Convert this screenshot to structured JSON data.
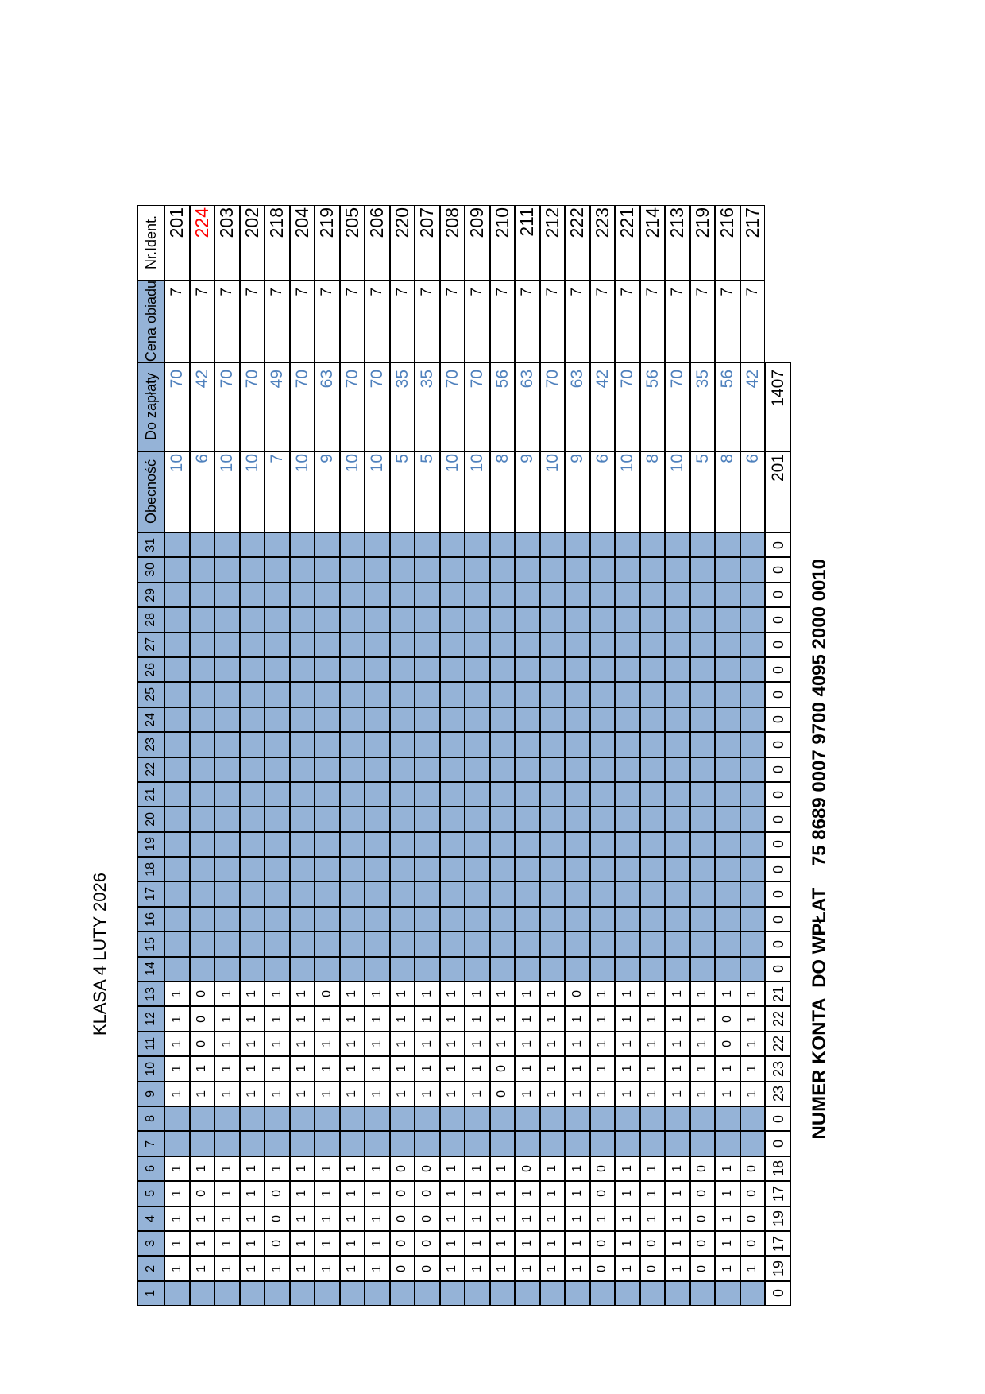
{
  "page": {
    "title_vertical": "KLASA 4 LUTY 2026",
    "account_line": "NUMER KONTA  DO WPŁAT    75 8689 0007 9700 4095 2000 0010"
  },
  "colors": {
    "fill_blue": "#95b3d7",
    "text_blue": "#4f81bd",
    "alert_red": "#ff0000"
  },
  "table": {
    "headers": {
      "id": "Nr.Ident.",
      "price": "Cena obiadu",
      "due": "Do zapłaty",
      "attendance": "Obecność"
    },
    "students": [
      {
        "id": "201",
        "id_color": "black",
        "price": "7",
        "due": "70",
        "attendance": "10"
      },
      {
        "id": "224",
        "id_color": "red",
        "price": "7",
        "due": "42",
        "attendance": "6"
      },
      {
        "id": "203",
        "id_color": "black",
        "price": "7",
        "due": "70",
        "attendance": "10"
      },
      {
        "id": "202",
        "id_color": "black",
        "price": "7",
        "due": "70",
        "attendance": "10"
      },
      {
        "id": "218",
        "id_color": "black",
        "price": "7",
        "due": "49",
        "attendance": "7"
      },
      {
        "id": "204",
        "id_color": "black",
        "price": "7",
        "due": "70",
        "attendance": "10"
      },
      {
        "id": "219",
        "id_color": "black",
        "price": "7",
        "due": "63",
        "attendance": "9"
      },
      {
        "id": "205",
        "id_color": "black",
        "price": "7",
        "due": "70",
        "attendance": "10"
      },
      {
        "id": "206",
        "id_color": "black",
        "price": "7",
        "due": "70",
        "attendance": "10"
      },
      {
        "id": "220",
        "id_color": "black",
        "price": "7",
        "due": "35",
        "attendance": "5"
      },
      {
        "id": "207",
        "id_color": "black",
        "price": "7",
        "due": "35",
        "attendance": "5"
      },
      {
        "id": "208",
        "id_color": "black",
        "price": "7",
        "due": "70",
        "attendance": "10"
      },
      {
        "id": "209",
        "id_color": "black",
        "price": "7",
        "due": "70",
        "attendance": "10"
      },
      {
        "id": "210",
        "id_color": "black",
        "price": "7",
        "due": "56",
        "attendance": "8"
      },
      {
        "id": "211",
        "id_color": "black",
        "price": "7",
        "due": "63",
        "attendance": "9"
      },
      {
        "id": "212",
        "id_color": "black",
        "price": "7",
        "due": "70",
        "attendance": "10"
      },
      {
        "id": "222",
        "id_color": "black",
        "price": "7",
        "due": "63",
        "attendance": "9"
      },
      {
        "id": "223",
        "id_color": "black",
        "price": "7",
        "due": "42",
        "attendance": "6"
      },
      {
        "id": "221",
        "id_color": "black",
        "price": "7",
        "due": "70",
        "attendance": "10"
      },
      {
        "id": "214",
        "id_color": "black",
        "price": "7",
        "due": "56",
        "attendance": "8"
      },
      {
        "id": "213",
        "id_color": "black",
        "price": "7",
        "due": "70",
        "attendance": "10"
      },
      {
        "id": "219",
        "id_color": "black",
        "price": "7",
        "due": "35",
        "attendance": "5"
      },
      {
        "id": "216",
        "id_color": "black",
        "price": "7",
        "due": "56",
        "attendance": "8"
      },
      {
        "id": "217",
        "id_color": "black",
        "price": "7",
        "due": "42",
        "attendance": "6"
      }
    ],
    "totals": {
      "due": "1407",
      "attendance": "201"
    },
    "days": [
      {
        "day": "31",
        "school": false,
        "total": "0",
        "marks": null
      },
      {
        "day": "30",
        "school": false,
        "total": "0",
        "marks": null
      },
      {
        "day": "29",
        "school": false,
        "total": "0",
        "marks": null
      },
      {
        "day": "28",
        "school": false,
        "total": "0",
        "marks": null
      },
      {
        "day": "27",
        "school": false,
        "total": "0",
        "marks": null
      },
      {
        "day": "26",
        "school": false,
        "total": "0",
        "marks": null
      },
      {
        "day": "25",
        "school": false,
        "total": "0",
        "marks": null
      },
      {
        "day": "24",
        "school": false,
        "total": "0",
        "marks": null
      },
      {
        "day": "23",
        "school": false,
        "total": "0",
        "marks": null
      },
      {
        "day": "22",
        "school": false,
        "total": "0",
        "marks": null
      },
      {
        "day": "21",
        "school": false,
        "total": "0",
        "marks": null
      },
      {
        "day": "20",
        "school": false,
        "total": "0",
        "marks": null
      },
      {
        "day": "19",
        "school": false,
        "total": "0",
        "marks": null
      },
      {
        "day": "18",
        "school": false,
        "total": "0",
        "marks": null
      },
      {
        "day": "17",
        "school": false,
        "total": "0",
        "marks": null
      },
      {
        "day": "16",
        "school": false,
        "total": "0",
        "marks": null
      },
      {
        "day": "15",
        "school": false,
        "total": "0",
        "marks": null
      },
      {
        "day": "14",
        "school": false,
        "total": "0",
        "marks": null
      },
      {
        "day": "13",
        "school": true,
        "total": "21",
        "marks": [
          1,
          0,
          1,
          1,
          1,
          1,
          0,
          1,
          1,
          1,
          1,
          1,
          1,
          1,
          1,
          1,
          0,
          1,
          1,
          1,
          1,
          1,
          1,
          1
        ]
      },
      {
        "day": "12",
        "school": true,
        "total": "22",
        "marks": [
          1,
          0,
          1,
          1,
          1,
          1,
          1,
          1,
          1,
          1,
          1,
          1,
          1,
          1,
          1,
          1,
          1,
          1,
          1,
          1,
          1,
          1,
          0,
          1
        ]
      },
      {
        "day": "11",
        "school": true,
        "total": "22",
        "marks": [
          1,
          0,
          1,
          1,
          1,
          1,
          1,
          1,
          1,
          1,
          1,
          1,
          1,
          1,
          1,
          1,
          1,
          1,
          1,
          1,
          1,
          1,
          0,
          1
        ]
      },
      {
        "day": "10",
        "school": true,
        "total": "23",
        "marks": [
          1,
          1,
          1,
          1,
          1,
          1,
          1,
          1,
          1,
          1,
          1,
          1,
          1,
          0,
          1,
          1,
          1,
          1,
          1,
          1,
          1,
          1,
          1,
          1
        ]
      },
      {
        "day": "9",
        "school": true,
        "total": "23",
        "marks": [
          1,
          1,
          1,
          1,
          1,
          1,
          1,
          1,
          1,
          1,
          1,
          1,
          1,
          0,
          1,
          1,
          1,
          1,
          1,
          1,
          1,
          1,
          1,
          1
        ]
      },
      {
        "day": "8",
        "school": false,
        "total": "0",
        "marks": null
      },
      {
        "day": "7",
        "school": false,
        "total": "0",
        "marks": null
      },
      {
        "day": "6",
        "school": true,
        "total": "18",
        "marks": [
          1,
          1,
          1,
          1,
          1,
          1,
          1,
          1,
          1,
          0,
          0,
          1,
          1,
          1,
          0,
          1,
          1,
          0,
          1,
          1,
          1,
          0,
          1,
          0
        ]
      },
      {
        "day": "5",
        "school": true,
        "total": "17",
        "marks": [
          1,
          0,
          1,
          1,
          0,
          1,
          1,
          1,
          1,
          0,
          0,
          1,
          1,
          1,
          1,
          1,
          1,
          0,
          1,
          1,
          1,
          0,
          1,
          0
        ]
      },
      {
        "day": "4",
        "school": true,
        "total": "19",
        "marks": [
          1,
          1,
          1,
          1,
          0,
          1,
          1,
          1,
          1,
          0,
          0,
          1,
          1,
          1,
          1,
          1,
          1,
          1,
          1,
          1,
          1,
          0,
          1,
          0
        ]
      },
      {
        "day": "3",
        "school": true,
        "total": "17",
        "marks": [
          1,
          1,
          1,
          1,
          0,
          1,
          1,
          1,
          1,
          0,
          0,
          1,
          1,
          1,
          1,
          1,
          1,
          0,
          1,
          0,
          1,
          0,
          1,
          0
        ]
      },
      {
        "day": "2",
        "school": true,
        "total": "19",
        "marks": [
          1,
          1,
          1,
          1,
          1,
          1,
          1,
          1,
          1,
          0,
          0,
          1,
          1,
          1,
          1,
          1,
          1,
          0,
          1,
          0,
          1,
          0,
          1,
          1
        ]
      },
      {
        "day": "1",
        "school": false,
        "total": "0",
        "marks": null
      }
    ]
  }
}
